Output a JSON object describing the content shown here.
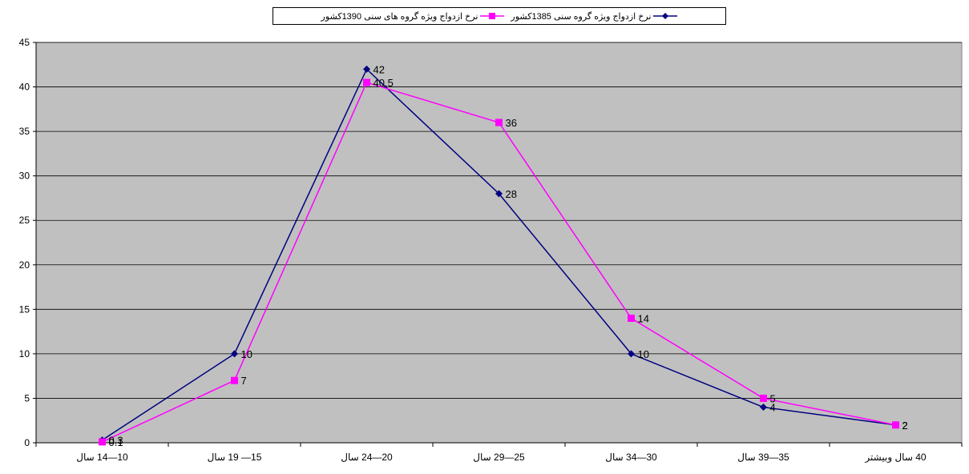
{
  "chart_data": {
    "type": "line",
    "title": "",
    "xlabel": "",
    "ylabel": "",
    "ylim": [
      0,
      45
    ],
    "y_ticks": [
      "0",
      "5",
      "10",
      "15",
      "20",
      "25",
      "30",
      "35",
      "40",
      "45"
    ],
    "grid": true,
    "plot_background": "#C0C0C0",
    "legend_position": "top",
    "categories": [
      "10—14 سال",
      "15— 19 سال",
      "20—24 سال",
      "25—29 سال",
      "30—34 سال",
      "35—39 سال",
      "40 سال وبیشتر"
    ],
    "series": [
      {
        "name": "نرخ ازدواج ویژه گروه سنی 1385کشور",
        "color": "#000080",
        "marker": "diamond",
        "values": [
          0.3,
          10,
          42,
          28,
          10,
          4,
          2
        ],
        "value_labels": [
          "0.3",
          "10",
          "42",
          "28",
          "10",
          "4",
          "2"
        ]
      },
      {
        "name": "نرخ ازدواج ویژه گروه های سنی 1390کشور",
        "color": "#FF00FF",
        "marker": "square",
        "values": [
          0.1,
          7,
          40.5,
          36,
          14,
          5,
          2
        ],
        "value_labels": [
          "0.1",
          "7",
          "40.5",
          "36",
          "14",
          "5",
          "2"
        ]
      }
    ]
  }
}
